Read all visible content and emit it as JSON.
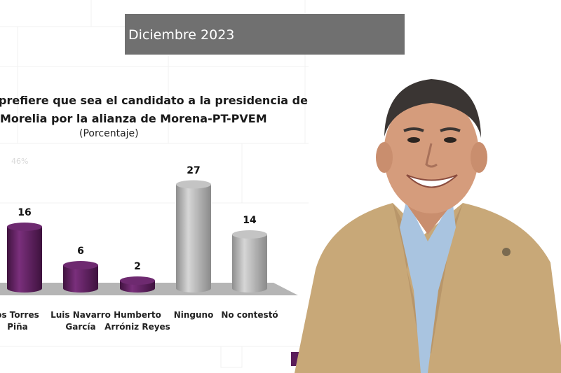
{
  "header": {
    "date_label": "Diciembre 2023"
  },
  "chart_data": {
    "type": "bar",
    "title_lines": [
      "prefiere que sea el candidato a la presidencia de",
      "Morelia por la alianza de Morena-PT-PVEM"
    ],
    "subtitle": "(Porcentaje)",
    "ghost_axis_label": "46%",
    "categories": [
      "os Torres\nPiña",
      "Luis Navarro\nGarcía",
      "Humberto\nArróniz Reyes",
      "Ninguno",
      "No contestó"
    ],
    "values": [
      16,
      6,
      2,
      27,
      14
    ],
    "value_labels": [
      "16",
      "6",
      "2",
      "27",
      "14"
    ],
    "bar_colors": [
      "#5b1f5e",
      "#5b1f5e",
      "#5b1f5e",
      "#a9a9a9",
      "#a9a9a9"
    ],
    "ylim": [
      0,
      30
    ],
    "xlabel": "",
    "ylabel": "",
    "grid": false
  },
  "photo": {
    "icon": "person-portrait-icon"
  }
}
